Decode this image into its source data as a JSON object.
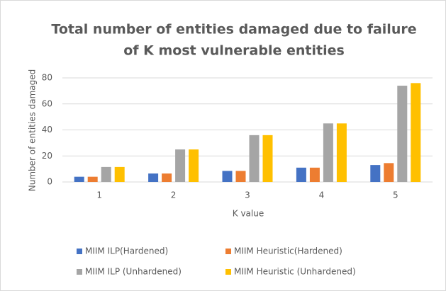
{
  "chart_data": {
    "type": "bar",
    "title": [
      "Total number of entities damaged due to failure",
      "of K most vulnerable entities"
    ],
    "x_label": "K value",
    "y_label": "Number  of entities damaged",
    "categories": [
      "1",
      "2",
      "3",
      "4",
      "5"
    ],
    "series": [
      {
        "name": "MIIM ILP(Hardened)",
        "color": "#4472c4",
        "values": [
          4,
          6.5,
          8.5,
          11,
          13
        ]
      },
      {
        "name": "MIIM Heuristic(Hardened)",
        "color": "#ed7d31",
        "values": [
          4,
          6.5,
          8.5,
          11,
          14.5
        ]
      },
      {
        "name": "MIIM ILP (Unhardened)",
        "color": "#a5a5a5",
        "values": [
          11.5,
          25,
          36,
          45,
          74
        ]
      },
      {
        "name": "MIIM Heuristic (Unhardened)",
        "color": "#ffc000",
        "values": [
          11.5,
          25,
          36,
          45,
          76
        ]
      }
    ],
    "ylim": [
      0,
      80
    ],
    "yticks": [
      0,
      20,
      40,
      60,
      80
    ],
    "grid": true
  }
}
